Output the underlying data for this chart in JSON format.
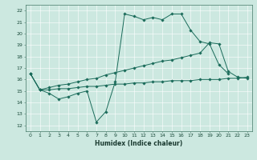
{
  "title": "",
  "xlabel": "Humidex (Indice chaleur)",
  "background_color": "#cce8e0",
  "grid_color": "#b0d8d0",
  "line_color": "#1a6b5a",
  "xlim": [
    -0.5,
    23.5
  ],
  "ylim": [
    11.5,
    22.5
  ],
  "yticks": [
    12,
    13,
    14,
    15,
    16,
    17,
    18,
    19,
    20,
    21,
    22
  ],
  "xticks": [
    0,
    1,
    2,
    3,
    4,
    5,
    6,
    7,
    8,
    9,
    10,
    11,
    12,
    13,
    14,
    15,
    16,
    17,
    18,
    19,
    20,
    21,
    22,
    23
  ],
  "series1_x": [
    0,
    1,
    2,
    3,
    4,
    5,
    6,
    7,
    8,
    9,
    10,
    11,
    12,
    13,
    14,
    15,
    16,
    17,
    18,
    19,
    20,
    21
  ],
  "series1_y": [
    16.5,
    15.1,
    14.8,
    14.3,
    14.5,
    14.8,
    15.0,
    12.3,
    13.2,
    15.8,
    21.7,
    21.5,
    21.2,
    21.4,
    21.2,
    21.7,
    21.7,
    20.3,
    19.3,
    19.1,
    17.3,
    16.5
  ],
  "series2_x": [
    0,
    1,
    2,
    3,
    4,
    5,
    6,
    7,
    8,
    9,
    10,
    11,
    12,
    13,
    14,
    15,
    16,
    17,
    18,
    19,
    20,
    21,
    22,
    23
  ],
  "series2_y": [
    16.5,
    15.1,
    15.3,
    15.5,
    15.6,
    15.8,
    16.0,
    16.1,
    16.4,
    16.6,
    16.8,
    17.0,
    17.2,
    17.4,
    17.6,
    17.7,
    17.9,
    18.1,
    18.3,
    19.2,
    19.1,
    16.7,
    16.2,
    16.1
  ],
  "series3_x": [
    0,
    1,
    2,
    3,
    4,
    5,
    6,
    7,
    8,
    9,
    10,
    11,
    12,
    13,
    14,
    15,
    16,
    17,
    18,
    19,
    20,
    21,
    22,
    23
  ],
  "series3_y": [
    16.5,
    15.1,
    15.1,
    15.2,
    15.2,
    15.3,
    15.4,
    15.4,
    15.5,
    15.6,
    15.6,
    15.7,
    15.7,
    15.8,
    15.8,
    15.9,
    15.9,
    15.9,
    16.0,
    16.0,
    16.0,
    16.1,
    16.1,
    16.2
  ],
  "xlabel_fontsize": 5.5,
  "tick_fontsize": 4.5,
  "marker_size": 1.8,
  "linewidth": 0.7
}
